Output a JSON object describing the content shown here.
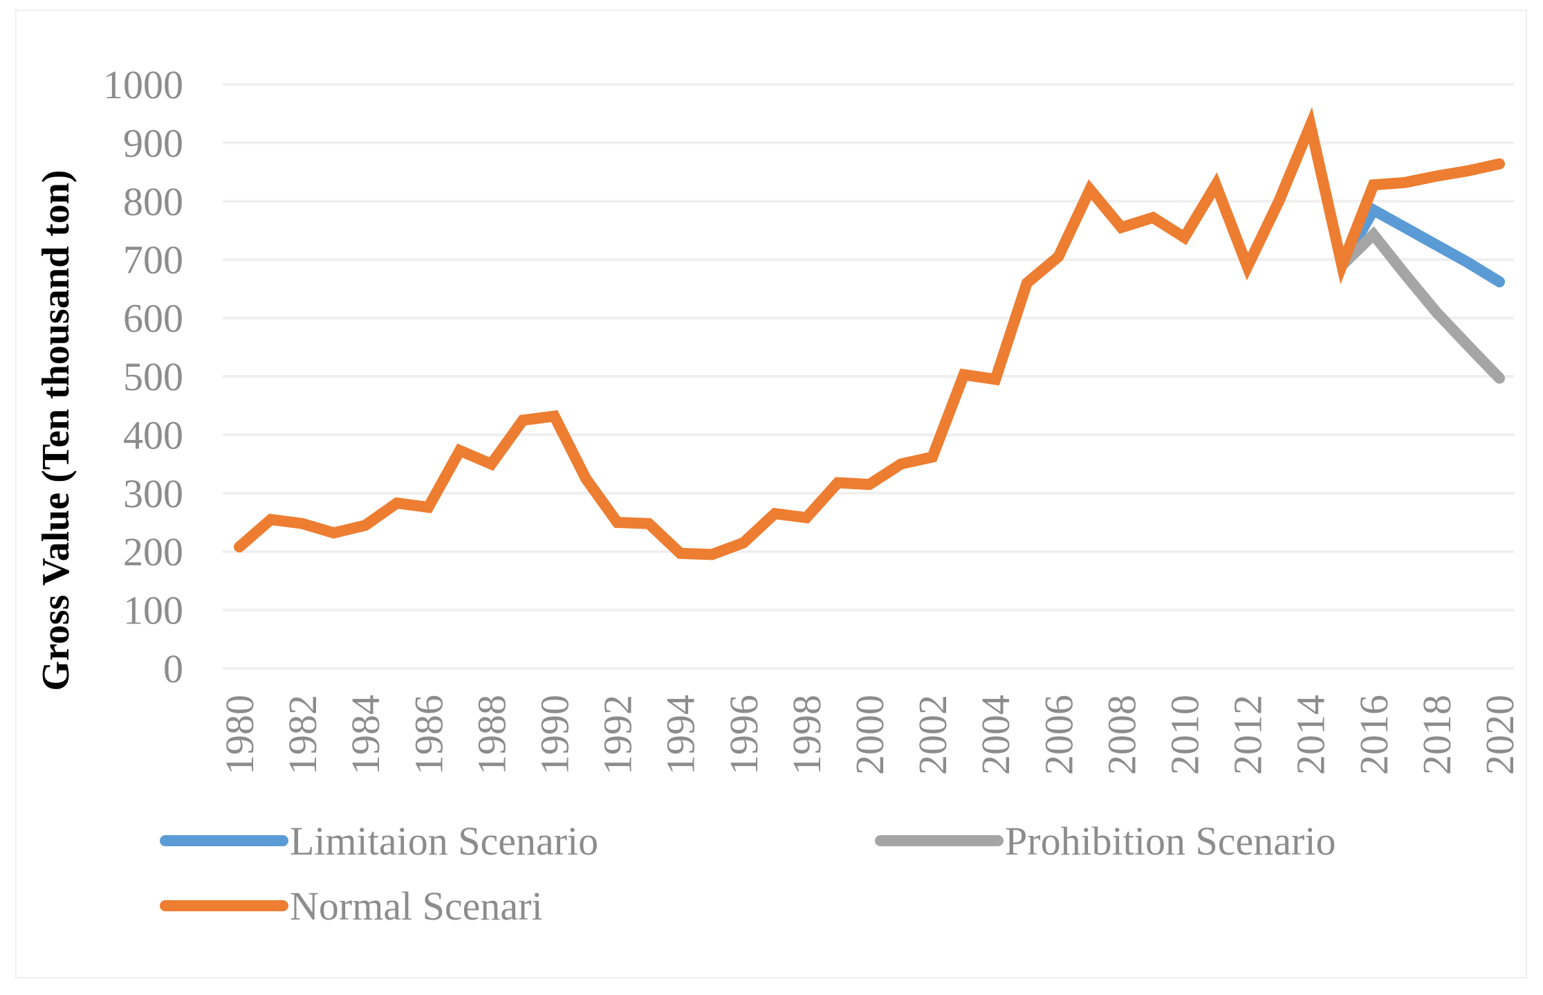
{
  "chart_data": {
    "type": "line",
    "title": "",
    "xlabel": "",
    "ylabel": "Gross Value (Ten thousand ton)",
    "ylim": [
      0,
      1000
    ],
    "yticks": [
      "0",
      "100",
      "200",
      "300",
      "400",
      "500",
      "600",
      "700",
      "800",
      "900",
      "1000"
    ],
    "xticks": [
      "1980",
      "1982",
      "1984",
      "1986",
      "1988",
      "1990",
      "1992",
      "1994",
      "1996",
      "1998",
      "2000",
      "2002",
      "2004",
      "2006",
      "2008",
      "2010",
      "2012",
      "2014",
      "2016",
      "2018",
      "2020"
    ],
    "grid": true,
    "legend_position": "bottom",
    "series": [
      {
        "name": "Limitaion Scenario",
        "color": "#5b9bd5",
        "x": [
          2015,
          2016,
          2017,
          2018,
          2019,
          2020
        ],
        "values": [
          690,
          785,
          755,
          725,
          695,
          662
        ]
      },
      {
        "name": "Prohibition Scenario",
        "color": "#a5a5a5",
        "x": [
          2015,
          2016,
          2017,
          2018,
          2019,
          2020
        ],
        "values": [
          690,
          743,
          675,
          610,
          553,
          497
        ]
      },
      {
        "name": "Normal Scenari",
        "color": "#ed7d31",
        "x": [
          1980,
          1981,
          1982,
          1983,
          1984,
          1985,
          1986,
          1987,
          1988,
          1989,
          1990,
          1991,
          1992,
          1993,
          1994,
          1995,
          1996,
          1997,
          1998,
          1999,
          2000,
          2001,
          2002,
          2003,
          2004,
          2005,
          2006,
          2007,
          2008,
          2009,
          2010,
          2011,
          2012,
          2013,
          2014,
          2015,
          2016,
          2017,
          2018,
          2019,
          2020
        ],
        "values": [
          208,
          255,
          248,
          232,
          245,
          283,
          276,
          373,
          350,
          425,
          432,
          325,
          250,
          248,
          197,
          195,
          215,
          265,
          258,
          318,
          315,
          350,
          362,
          503,
          495,
          660,
          705,
          820,
          755,
          772,
          738,
          828,
          688,
          800,
          930,
          690,
          828,
          832,
          843,
          852,
          864
        ]
      }
    ]
  }
}
